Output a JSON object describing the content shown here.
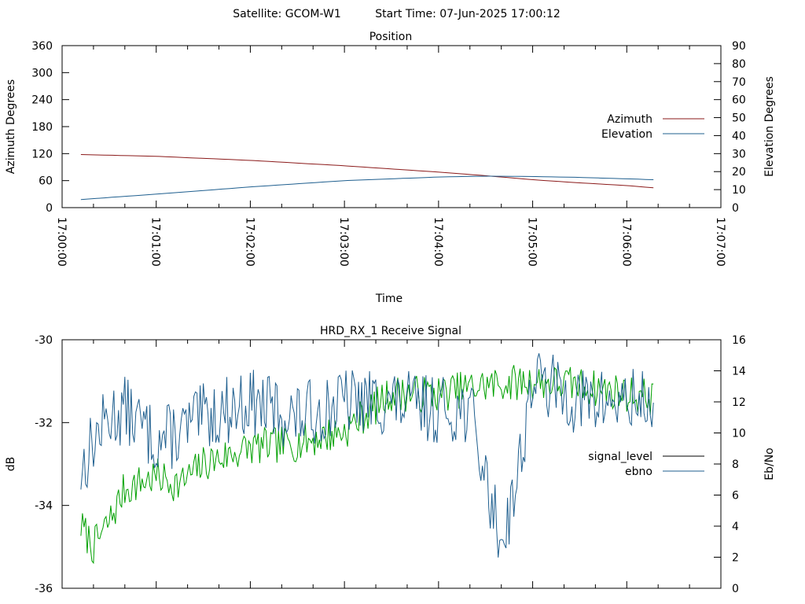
{
  "header": {
    "satellite_label": "Satellite: GCOM-W1",
    "start_label": "Start Time: 07-Jun-2025 17:00:12"
  },
  "colors": {
    "azimuth": "#8b1a1a",
    "elevation": "#1f5f8f",
    "signal_level": "#000000",
    "ebno_legend": "#1f5f8f",
    "green_trace": "#00a000",
    "blue_trace": "#1f5f8f"
  },
  "chart_data": [
    {
      "type": "line",
      "title": "Position",
      "xlabel": "Time",
      "ylabel": "Azimuth Degrees",
      "y2label": "Elevation Degrees",
      "xlim": [
        "17:00:00",
        "17:07:00"
      ],
      "xticks": [
        "17:00:00",
        "17:01:00",
        "17:02:00",
        "17:03:00",
        "17:04:00",
        "17:05:00",
        "17:06:00",
        "17:07:00"
      ],
      "ylim": [
        0,
        360
      ],
      "yticks": [
        0,
        60,
        120,
        180,
        240,
        300,
        360
      ],
      "y2lim": [
        0,
        90
      ],
      "y2ticks": [
        0,
        10,
        20,
        30,
        40,
        50,
        60,
        70,
        80,
        90
      ],
      "legend_position": "right",
      "grid": false,
      "series": [
        {
          "name": "Azimuth",
          "axis": "left",
          "color": "#8b1a1a",
          "x": [
            "17:00:12",
            "17:01:00",
            "17:02:00",
            "17:03:00",
            "17:04:00",
            "17:04:30",
            "17:05:00",
            "17:05:30",
            "17:06:00",
            "17:06:17"
          ],
          "values": [
            118,
            114,
            105,
            93,
            79,
            71,
            62,
            55,
            49,
            44
          ]
        },
        {
          "name": "Elevation",
          "axis": "right",
          "color": "#1f5f8f",
          "x": [
            "17:00:12",
            "17:01:00",
            "17:02:00",
            "17:03:00",
            "17:04:00",
            "17:04:30",
            "17:05:00",
            "17:05:30",
            "17:06:00",
            "17:06:17"
          ],
          "values": [
            4.5,
            7.5,
            11.5,
            15,
            17,
            17.5,
            17.3,
            16.8,
            16,
            15.5
          ]
        }
      ]
    },
    {
      "type": "line",
      "title": "HRD_RX_1 Receive Signal",
      "xlabel": "",
      "ylabel": "dB",
      "y2label": "Eb/No",
      "xlim": [
        "17:00:00",
        "17:07:00"
      ],
      "ylim": [
        -36,
        -30
      ],
      "yticks": [
        -36,
        -34,
        -32,
        -30
      ],
      "y2lim": [
        0,
        16
      ],
      "y2ticks": [
        0,
        2,
        4,
        6,
        8,
        10,
        12,
        14,
        16
      ],
      "legend_position": "right",
      "grid": false,
      "legend": [
        {
          "name": "signal_level",
          "color": "#000000"
        },
        {
          "name": "ebno",
          "color": "#1f5f8f"
        }
      ],
      "series": [
        {
          "color": "#00a000",
          "axis": "left",
          "x": [
            "17:00:12",
            "17:00:20",
            "17:00:30",
            "17:00:40",
            "17:01:00",
            "17:01:15",
            "17:01:30",
            "17:02:00",
            "17:02:30",
            "17:03:00",
            "17:03:30",
            "17:04:00",
            "17:04:30",
            "17:05:00",
            "17:05:30",
            "17:06:00",
            "17:06:17"
          ],
          "values": [
            -34.5,
            -35.0,
            -34.4,
            -33.6,
            -33.3,
            -33.5,
            -33.0,
            -32.6,
            -32.5,
            -32.2,
            -31.3,
            -31.3,
            -31.1,
            -31.0,
            -31.1,
            -31.3,
            -31.4
          ]
        },
        {
          "color": "#1f5f8f",
          "axis": "right",
          "x": [
            "17:00:12",
            "17:00:20",
            "17:00:30",
            "17:00:40",
            "17:01:00",
            "17:01:15",
            "17:01:30",
            "17:02:00",
            "17:02:30",
            "17:03:00",
            "17:03:30",
            "17:04:00",
            "17:04:20",
            "17:04:30",
            "17:04:40",
            "17:04:50",
            "17:05:00",
            "17:05:30",
            "17:06:00",
            "17:06:17"
          ],
          "values": [
            7.5,
            9.5,
            11.0,
            11.5,
            9.5,
            10.0,
            11.0,
            12.0,
            11.0,
            12.0,
            12.0,
            11.5,
            11.5,
            7.0,
            3.0,
            7.0,
            13.5,
            12.0,
            12.0,
            12.0
          ]
        }
      ]
    }
  ]
}
